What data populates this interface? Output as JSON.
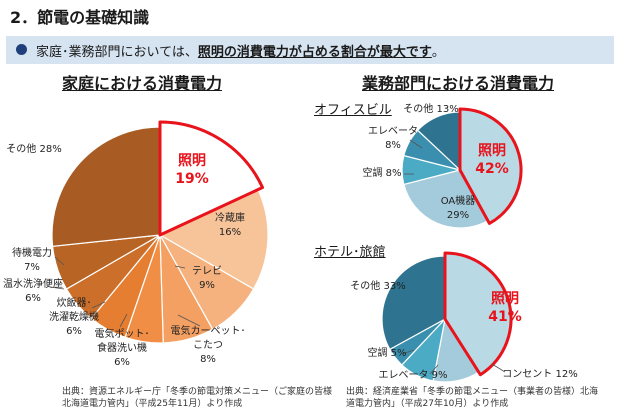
{
  "header": {
    "title": "2．節電の基礎知識",
    "summary_pre": "家庭･業務部門においては、",
    "summary_hl": "照明の消費電力が占める割合が最大です",
    "summary_post": "。"
  },
  "household": {
    "heading": "家庭における消費電力",
    "source_line1": "出典：資源エネルギー庁「冬季の節電対策メニュー（ご家庭の皆様",
    "source_line2": "北海道電力管内」（平成25年11月）より作成"
  },
  "business": {
    "heading": "業務部門における消費電力",
    "source_line1": "出典：経済産業省「冬季の節電メニュー（事業者の皆様）北海",
    "source_line2": "道電力管内」（平成27年10月）より作成"
  },
  "chart_data": [
    {
      "type": "pie",
      "title": "家庭における消費電力",
      "slices": [
        {
          "label": "照明",
          "value": 19,
          "text": "19%",
          "color": "#ffffff",
          "emphasis": true
        },
        {
          "label": "冷蔵庫",
          "value": 16,
          "text": "16%",
          "color": "#f7c49a"
        },
        {
          "label": "テレビ",
          "value": 9,
          "text": "9%",
          "color": "#f5b27e"
        },
        {
          "label": "電気カーペット･こたつ",
          "value": 8,
          "text": "8%",
          "color": "#f4a063"
        },
        {
          "label": "電気ポット･食器洗い機",
          "value": 6,
          "text": "6%",
          "color": "#f18e45"
        },
        {
          "label": "炊飯器･洗濯乾燥機",
          "value": 6,
          "text": "6%",
          "color": "#e67e31"
        },
        {
          "label": "温水洗浄便座",
          "value": 6,
          "text": "6%",
          "color": "#cc6f2a"
        },
        {
          "label": "待機電力",
          "value": 7,
          "text": "7%",
          "color": "#b76425"
        },
        {
          "label": "その他",
          "value": 28,
          "text": "28%",
          "color": "#a85b22"
        }
      ]
    },
    {
      "type": "pie",
      "title": "オフィスビル",
      "slices": [
        {
          "label": "照明",
          "value": 42,
          "text": "42%",
          "color": "#b9d9e5",
          "emphasis": true
        },
        {
          "label": "OA機器",
          "value": 29,
          "text": "29%",
          "color": "#a3cbdb"
        },
        {
          "label": "空調",
          "value": 8,
          "text": "8%",
          "color": "#4cabc4"
        },
        {
          "label": "エレベータ",
          "value": 8,
          "text": "8%",
          "color": "#3b8fae"
        },
        {
          "label": "その他",
          "value": 13,
          "text": "13%",
          "color": "#2e7491"
        }
      ]
    },
    {
      "type": "pie",
      "title": "ホテル･旅館",
      "slices": [
        {
          "label": "照明",
          "value": 41,
          "text": "41%",
          "color": "#b9d9e5",
          "emphasis": true
        },
        {
          "label": "コンセント",
          "value": 12,
          "text": "12%",
          "color": "#a3cbdb"
        },
        {
          "label": "エレベータ",
          "value": 9,
          "text": "9%",
          "color": "#4cabc4"
        },
        {
          "label": "空調",
          "value": 5,
          "text": "5%",
          "color": "#3b8fae"
        },
        {
          "label": "その他",
          "value": 33,
          "text": "33%",
          "color": "#2e7491"
        }
      ]
    }
  ]
}
